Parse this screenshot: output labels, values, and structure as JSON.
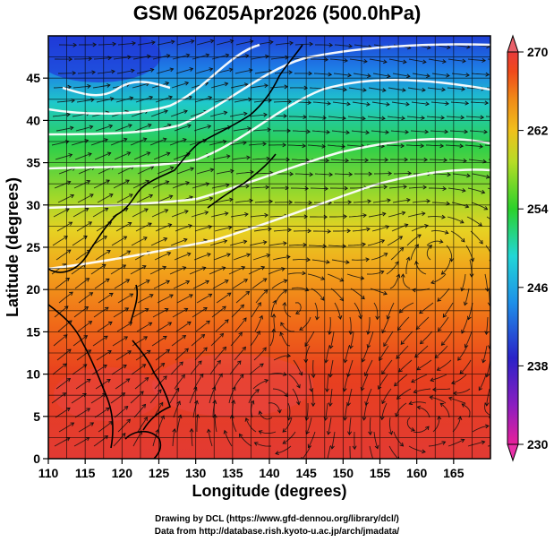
{
  "title": "GSM 06Z05Apr2026 (500.0hPa)",
  "axes": {
    "xlabel": "Longitude (degrees)",
    "ylabel": "Latitude  (degrees)",
    "x_ticks": [
      "110",
      "115",
      "120",
      "125",
      "130",
      "135",
      "140",
      "145",
      "150",
      "155",
      "160",
      "165"
    ],
    "y_ticks": [
      "0",
      "5",
      "10",
      "15",
      "20",
      "25",
      "30",
      "35",
      "40",
      "45"
    ],
    "x_range": [
      110,
      170
    ],
    "y_range": [
      0,
      50
    ]
  },
  "colorbar": {
    "labels": [
      "270",
      "262",
      "254",
      "246",
      "238",
      "230"
    ],
    "range": [
      230,
      270
    ],
    "colors": [
      "#e8209a",
      "#3a1fbf",
      "#1e8fe8",
      "#22d6d6",
      "#2bd12b",
      "#d6e22a",
      "#f0a41a",
      "#f04a1a",
      "#e83a3a"
    ]
  },
  "chart_data": {
    "type": "heatmap",
    "title": "GSM 06Z05Apr2026 (500.0hPa)",
    "xlabel": "Longitude (degrees)",
    "ylabel": "Latitude  (degrees)",
    "xlim": [
      110,
      170
    ],
    "ylim": [
      0,
      50
    ],
    "colorbar_range": [
      230,
      270
    ],
    "colorbar_ticks": [
      230,
      238,
      246,
      254,
      262,
      270
    ],
    "approx_field_by_latitude": [
      {
        "lat": 0,
        "value": 268
      },
      {
        "lat": 10,
        "value": 268
      },
      {
        "lat": 20,
        "value": 265
      },
      {
        "lat": 25,
        "value": 262
      },
      {
        "lat": 30,
        "value": 258
      },
      {
        "lat": 35,
        "value": 254
      },
      {
        "lat": 40,
        "value": 250
      },
      {
        "lat": 45,
        "value": 244
      },
      {
        "lat": 48,
        "value": 238
      }
    ],
    "grid": true
  },
  "credits": {
    "line1": "Drawing by DCL (https://www.gfd-dennou.org/library/dcl/)",
    "line2": "Data from http://database.rish.kyoto-u.ac.jp/arch/jmadata/"
  }
}
